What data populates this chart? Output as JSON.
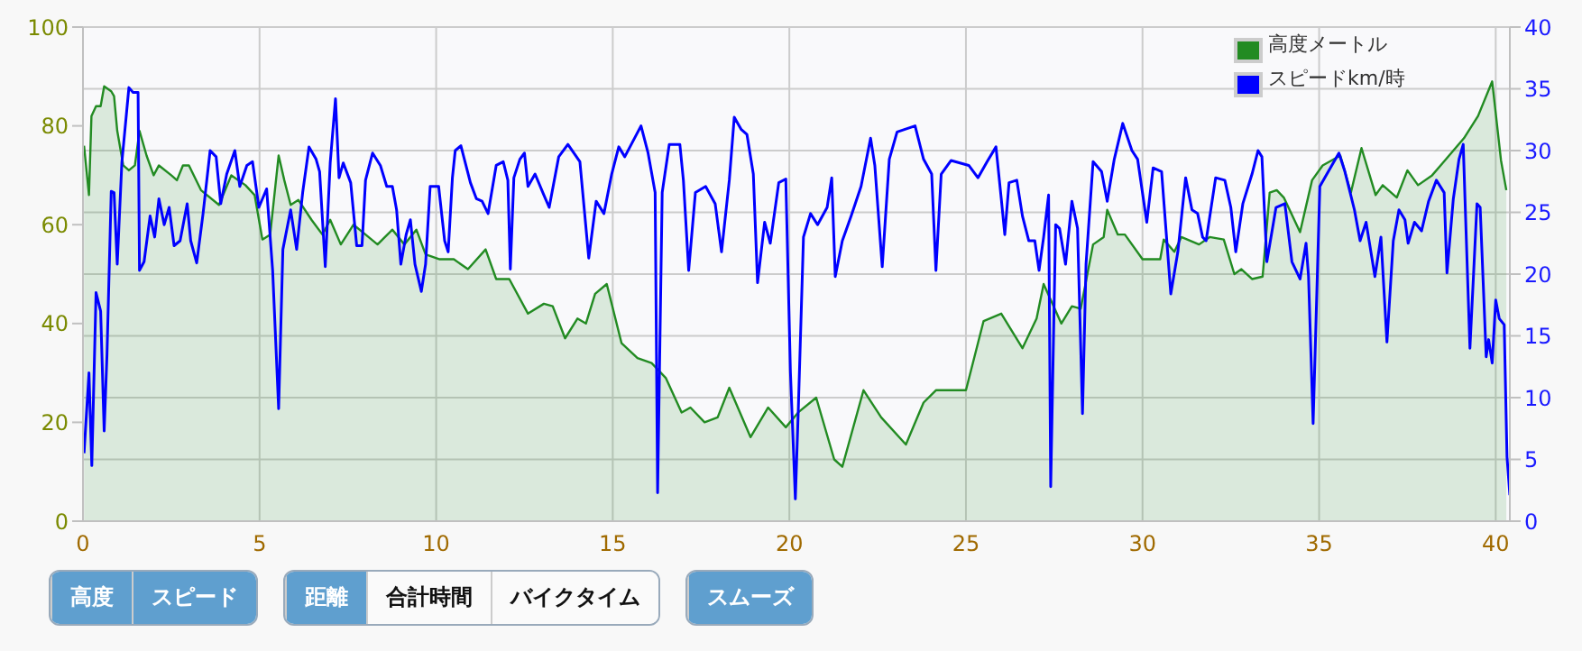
{
  "chart_data": {
    "type": "line",
    "xlim": [
      0,
      40.4
    ],
    "xticks": [
      0,
      5,
      10,
      15,
      20,
      25,
      30,
      35,
      40
    ],
    "ylim": [
      0,
      100
    ],
    "yticks": [
      0,
      20,
      40,
      60,
      80,
      100
    ],
    "y2lim": [
      0,
      40
    ],
    "y2ticks": [
      0,
      5,
      10,
      15,
      20,
      25,
      30,
      35,
      40
    ],
    "grid": true,
    "legend": "top right",
    "annotations": [
      "高度",
      "スピード",
      "距離",
      "合計時間",
      "バイクタイム",
      "スムーズ"
    ],
    "series": [
      {
        "name": "高度メートル",
        "type": "area",
        "color": "#228b22",
        "x": [
          0.03,
          0.17,
          0.24,
          0.37,
          0.5,
          0.6,
          0.8,
          0.88,
          0.97,
          1.14,
          1.3,
          1.47,
          1.6,
          1.8,
          2.0,
          2.15,
          2.5,
          2.66,
          2.83,
          3.0,
          3.34,
          3.85,
          4.2,
          4.6,
          4.86,
          5.08,
          5.3,
          5.54,
          5.7,
          5.88,
          6.1,
          6.47,
          6.78,
          7.0,
          7.3,
          7.66,
          8.0,
          8.34,
          8.76,
          9.1,
          9.44,
          9.7,
          10.1,
          10.5,
          10.9,
          11.4,
          11.7,
          12.07,
          12.6,
          13.05,
          13.3,
          13.65,
          14.0,
          14.24,
          14.5,
          14.83,
          15.25,
          15.7,
          16.1,
          16.5,
          16.95,
          17.2,
          17.6,
          17.97,
          18.3,
          18.9,
          19.4,
          19.9,
          20.25,
          20.76,
          21.27,
          21.5,
          22.1,
          22.6,
          23.3,
          23.8,
          24.15,
          25.0,
          25.5,
          26.0,
          26.6,
          27.0,
          27.2,
          27.7,
          28.0,
          28.25,
          28.6,
          28.9,
          29.0,
          29.3,
          29.5,
          30.0,
          30.5,
          30.6,
          30.9,
          31.1,
          31.6,
          31.9,
          32.3,
          32.6,
          32.8,
          33.1,
          33.4,
          33.6,
          33.8,
          34.0,
          34.46,
          34.8,
          35.1,
          35.6,
          35.9,
          36.2,
          36.6,
          36.8,
          37.2,
          37.5,
          37.8,
          38.2,
          38.5,
          39.1,
          39.5,
          39.9,
          40.15,
          40.3
        ],
        "values": [
          76,
          66,
          82,
          84,
          84,
          88,
          87,
          86,
          79,
          72,
          71,
          72,
          79,
          74,
          70,
          72,
          70,
          69,
          72,
          72,
          67,
          64,
          70,
          68,
          66,
          57,
          58,
          74,
          69,
          64,
          65,
          61,
          58,
          61,
          56,
          60,
          58,
          56,
          59,
          56,
          59,
          54,
          53,
          53,
          51,
          55,
          49,
          49,
          42,
          44,
          43.5,
          37,
          41,
          40,
          46,
          48,
          36,
          33,
          32,
          29,
          22,
          23,
          20,
          21,
          27,
          17,
          23,
          19,
          22,
          25,
          12.5,
          11,
          26.5,
          21,
          15.5,
          24,
          26.5,
          26.5,
          40.5,
          42,
          35,
          41,
          48,
          40,
          43.5,
          43,
          56,
          57.5,
          63,
          58,
          58,
          53,
          53,
          57,
          54.5,
          57.5,
          56,
          57.5,
          57,
          50,
          51,
          49,
          49.5,
          66.5,
          67,
          65.5,
          58.5,
          69,
          72,
          74,
          66.5,
          75.5,
          66,
          68,
          65.5,
          71,
          68,
          70,
          72.5,
          77.5,
          82,
          89,
          73,
          67
        ]
      },
      {
        "name": "スピードkm/時",
        "axis": "y2",
        "color": "#0000ff",
        "x": [
          0.03,
          0.17,
          0.25,
          0.37,
          0.5,
          0.6,
          0.68,
          0.8,
          0.88,
          0.97,
          1.1,
          1.3,
          1.42,
          1.56,
          1.6,
          1.73,
          1.9,
          2.03,
          2.15,
          2.3,
          2.44,
          2.58,
          2.75,
          2.95,
          3.05,
          3.22,
          3.4,
          3.6,
          3.77,
          3.9,
          4.07,
          4.3,
          4.44,
          4.64,
          4.8,
          4.98,
          5.2,
          5.37,
          5.54,
          5.66,
          5.88,
          6.05,
          6.22,
          6.4,
          6.6,
          6.7,
          6.86,
          7.0,
          7.15,
          7.25,
          7.37,
          7.58,
          7.75,
          7.9,
          8.0,
          8.2,
          8.42,
          8.6,
          8.76,
          8.88,
          9.0,
          9.15,
          9.27,
          9.4,
          9.58,
          9.7,
          9.83,
          10.07,
          10.24,
          10.34,
          10.46,
          10.54,
          10.7,
          10.97,
          11.14,
          11.3,
          11.47,
          11.7,
          11.9,
          12.03,
          12.1,
          12.2,
          12.37,
          12.5,
          12.6,
          12.8,
          13.05,
          13.2,
          13.47,
          13.73,
          14.07,
          14.32,
          14.53,
          14.75,
          14.97,
          15.17,
          15.34,
          15.8,
          16.0,
          16.2,
          16.27,
          16.4,
          16.6,
          16.9,
          17.0,
          17.15,
          17.34,
          17.63,
          17.9,
          18.08,
          18.3,
          18.44,
          18.64,
          18.8,
          18.98,
          19.1,
          19.3,
          19.46,
          19.7,
          19.9,
          20.03,
          20.17,
          20.25,
          20.4,
          20.6,
          20.8,
          21.07,
          21.2,
          21.3,
          21.5,
          21.75,
          22.03,
          22.3,
          22.42,
          22.63,
          22.83,
          23.05,
          23.56,
          23.8,
          24.03,
          24.15,
          24.3,
          24.58,
          25.08,
          25.34,
          25.6,
          25.85,
          26.0,
          26.1,
          26.22,
          26.44,
          26.6,
          26.78,
          26.95,
          27.07,
          27.2,
          27.34,
          27.4,
          27.54,
          27.65,
          27.82,
          28.0,
          28.16,
          28.3,
          28.4,
          28.6,
          28.84,
          29.0,
          29.2,
          29.44,
          29.7,
          29.86,
          30.12,
          30.3,
          30.54,
          30.8,
          31.0,
          31.22,
          31.4,
          31.56,
          31.7,
          31.8,
          32.07,
          32.33,
          32.5,
          32.64,
          32.84,
          33.1,
          33.27,
          33.38,
          33.52,
          33.78,
          34.03,
          34.23,
          34.46,
          34.63,
          34.7,
          34.83,
          35.02,
          35.22,
          35.56,
          35.73,
          36.0,
          36.16,
          36.33,
          36.58,
          36.75,
          36.92,
          37.1,
          37.26,
          37.43,
          37.52,
          37.7,
          37.9,
          38.1,
          38.32,
          38.54,
          38.62,
          38.8,
          38.96,
          39.08,
          39.13,
          39.27,
          39.47,
          39.56,
          39.73,
          39.8,
          39.9,
          40.0,
          40.1,
          40.24,
          40.32,
          40.4
        ],
        "values": [
          5.5,
          12,
          4.5,
          18.5,
          17,
          7.3,
          13.5,
          26.7,
          26.6,
          20.8,
          29,
          35.1,
          34.7,
          34.7,
          20.3,
          21,
          24.7,
          23,
          26.1,
          24,
          25.4,
          22.3,
          22.7,
          25.7,
          22.7,
          20.9,
          24.9,
          30,
          29.5,
          25.7,
          28.1,
          30,
          27.1,
          28.8,
          29.1,
          25.4,
          26.9,
          20.3,
          9.1,
          22,
          25.2,
          22,
          26.6,
          30.3,
          29.3,
          28.3,
          20.6,
          29,
          34.2,
          27.8,
          29,
          27.4,
          22.3,
          22.3,
          27.6,
          29.8,
          28.8,
          27.1,
          27.1,
          25.2,
          20.8,
          23.2,
          24.4,
          20.8,
          18.6,
          20.8,
          27.1,
          27.1,
          22.7,
          21.8,
          27.8,
          30,
          30.4,
          27.4,
          26.1,
          25.9,
          24.9,
          28.8,
          29.1,
          27.6,
          20.4,
          27.8,
          29.3,
          29.8,
          27.1,
          28.1,
          26.4,
          25.4,
          29.5,
          30.5,
          29.1,
          21.3,
          25.9,
          24.9,
          28.1,
          30.3,
          29.5,
          32,
          29.8,
          26.6,
          2.3,
          26.6,
          30.5,
          30.5,
          27.6,
          20.3,
          26.6,
          27.1,
          25.7,
          21.8,
          27.6,
          32.7,
          31.7,
          31.3,
          28.1,
          19.3,
          24.2,
          22.5,
          27.4,
          27.7,
          12.1,
          1.8,
          8.7,
          23,
          24.9,
          24,
          25.4,
          27.8,
          19.8,
          22.7,
          24.7,
          27.1,
          31,
          28.8,
          20.6,
          29.3,
          31.5,
          32,
          29.3,
          28.1,
          20.3,
          28.1,
          29.2,
          28.8,
          27.8,
          29.1,
          30.3,
          26.1,
          23.2,
          27.4,
          27.6,
          24.7,
          22.7,
          22.7,
          20.3,
          23,
          26.4,
          2.8,
          24,
          23.7,
          20.8,
          25.9,
          23.7,
          8.7,
          20.8,
          29.1,
          28.3,
          25.9,
          29.3,
          32.2,
          30,
          29.3,
          24.2,
          28.6,
          28.3,
          18.4,
          21.8,
          27.8,
          25.2,
          24.9,
          23,
          22.7,
          27.8,
          27.6,
          25.4,
          21.8,
          25.7,
          28.1,
          30,
          29.5,
          21,
          25.4,
          25.7,
          21,
          19.6,
          22.5,
          19.8,
          7.9,
          27.1,
          28.1,
          29.8,
          28.3,
          25.2,
          22.7,
          24.2,
          19.8,
          23,
          14.5,
          22.7,
          25.2,
          24.4,
          22.5,
          24.2,
          23.5,
          25.9,
          27.6,
          26.6,
          20.1,
          26.1,
          29.3,
          30.5,
          26.1,
          14,
          25.7,
          25.4,
          13.3,
          14.7,
          12.8,
          17.9,
          16.4,
          15.9,
          5.2,
          2.1
        ]
      }
    ]
  }
}
